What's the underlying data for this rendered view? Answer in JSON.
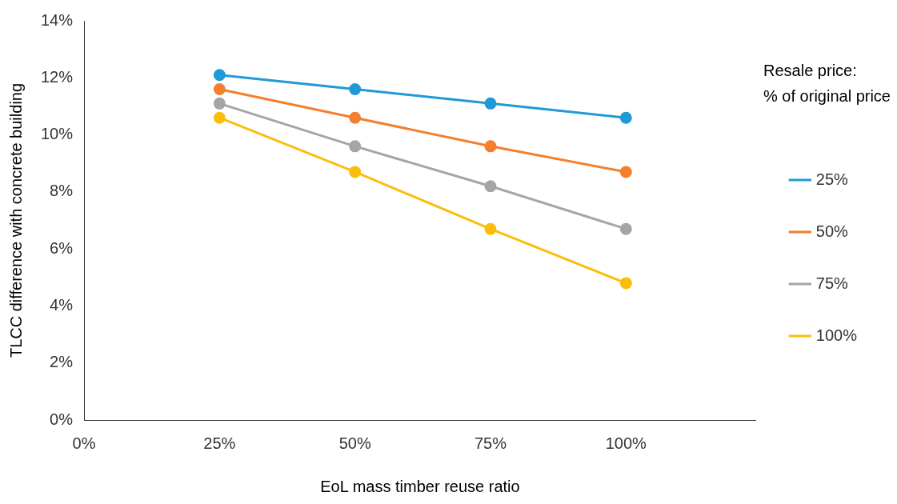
{
  "chart_data": {
    "type": "line",
    "xlabel": "EoL mass timber reuse ratio",
    "ylabel": "TLCC difference with concrete building",
    "legend_title": "Resale price:\n% of original price",
    "legend": "right",
    "marker": "circle",
    "grid": false,
    "x": [
      25,
      50,
      75,
      100
    ],
    "xlim": [
      0,
      124
    ],
    "xticks": [
      {
        "value": 0,
        "label": "0%"
      },
      {
        "value": 25,
        "label": "25%"
      },
      {
        "value": 50,
        "label": "50%"
      },
      {
        "value": 75,
        "label": "75%"
      },
      {
        "value": 100,
        "label": "100%"
      }
    ],
    "ylim": [
      0,
      14
    ],
    "yticks": [
      {
        "value": 0,
        "label": "0%"
      },
      {
        "value": 2,
        "label": "2%"
      },
      {
        "value": 4,
        "label": "4%"
      },
      {
        "value": 6,
        "label": "6%"
      },
      {
        "value": 8,
        "label": "8%"
      },
      {
        "value": 10,
        "label": "10%"
      },
      {
        "value": 12,
        "label": "12%"
      },
      {
        "value": 14,
        "label": "14%"
      }
    ],
    "series": [
      {
        "name": "25%",
        "color": "#1f9ad6",
        "values": [
          12.1,
          11.6,
          11.1,
          10.6
        ]
      },
      {
        "name": "50%",
        "color": "#f47f2c",
        "values": [
          11.6,
          10.6,
          9.6,
          8.7
        ]
      },
      {
        "name": "75%",
        "color": "#a5a5a5",
        "values": [
          11.1,
          9.6,
          8.2,
          6.7
        ]
      },
      {
        "name": "100%",
        "color": "#fbbd0c",
        "values": [
          10.6,
          8.7,
          6.7,
          4.8
        ]
      }
    ]
  }
}
